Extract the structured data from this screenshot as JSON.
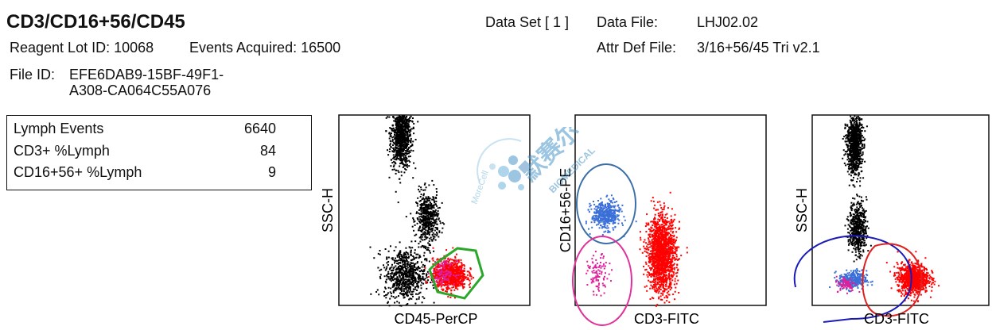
{
  "header": {
    "title": "CD3/CD16+56/CD45",
    "data_set": "Data Set [ 1 ]",
    "data_file_label": "Data File:",
    "data_file": "LHJ02.02",
    "reagent_lot": "Reagent Lot ID:  10068",
    "events_acquired": "Events Acquired:  16500",
    "attr_def_label": "Attr Def File:",
    "attr_def": "3/16+56/45 Tri v2.1",
    "file_id_label": "File ID:",
    "file_id_line1": "EFE6DAB9-15BF-49F1-",
    "file_id_line2": "A308-CA064C55A076"
  },
  "stats": {
    "rows": [
      {
        "label": "Lymph Events",
        "value": "6640"
      },
      {
        "label": "CD3+ %Lymph",
        "value": "84"
      },
      {
        "label": "CD16+56+ %Lymph",
        "value": "9"
      }
    ]
  },
  "watermark": {
    "brand_cn": "默赛尔",
    "brand_en": "BIOMEDICAL",
    "logo_text": "MoreCell"
  },
  "colors": {
    "background_events": "#000000",
    "lymph_events": "#ff0000",
    "nk_events": "#3a6fd8",
    "overlap_events": "#e0209a",
    "gate_lymph": "#2aa82a",
    "gate_nk": "#3a6ea8",
    "gate_cd3_neg": "#e0309a",
    "gate_cd3_pos": "#e02020",
    "gate_blue": "#1a1ab8"
  },
  "chart_data": [
    {
      "type": "scatter",
      "xlabel": "CD45-PerCP",
      "ylabel": "SSC-H",
      "title": "",
      "xlim": [
        0,
        1023
      ],
      "ylim": [
        0,
        1023
      ],
      "populations": [
        {
          "name": "",
          "color": "black",
          "center": [
            330,
            920
          ],
          "n": 900
        },
        {
          "name": "",
          "color": "black",
          "center": [
            470,
            470
          ],
          "n": 500
        },
        {
          "name": "",
          "color": "black",
          "center": [
            350,
            170
          ],
          "n": 700
        },
        {
          "name": "",
          "color": "red",
          "center": [
            590,
            170
          ],
          "n": 900
        },
        {
          "name": "",
          "color": "magenta",
          "center": [
            560,
            180
          ],
          "n": 120
        }
      ]
    },
    {
      "type": "scatter",
      "xlabel": "CD3-FITC",
      "ylabel": "CD16+56-PE",
      "title": "",
      "xlim": [
        0,
        1023
      ],
      "ylim": [
        0,
        1023
      ],
      "populations": [
        {
          "name": "",
          "color": "blue",
          "center": [
            160,
            490
          ],
          "n": 420
        },
        {
          "name": "",
          "color": "magenta",
          "center": [
            120,
            170
          ],
          "n": 100
        },
        {
          "name": "",
          "color": "red",
          "center": [
            460,
            280
          ],
          "n": 1600
        }
      ]
    },
    {
      "type": "scatter",
      "xlabel": "CD3-FITC",
      "ylabel": "SSC-H",
      "title": "",
      "xlim": [
        0,
        1023
      ],
      "ylim": [
        0,
        1023
      ],
      "populations": [
        {
          "name": "",
          "color": "black",
          "center": [
            240,
            870
          ],
          "n": 900
        },
        {
          "name": "",
          "color": "black",
          "center": [
            260,
            420
          ],
          "n": 500
        },
        {
          "name": "",
          "color": "blue",
          "center": [
            230,
            140
          ],
          "n": 300
        },
        {
          "name": "",
          "color": "magenta",
          "center": [
            190,
            120
          ],
          "n": 80
        },
        {
          "name": "",
          "color": "red",
          "center": [
            580,
            150
          ],
          "n": 900
        }
      ]
    }
  ]
}
